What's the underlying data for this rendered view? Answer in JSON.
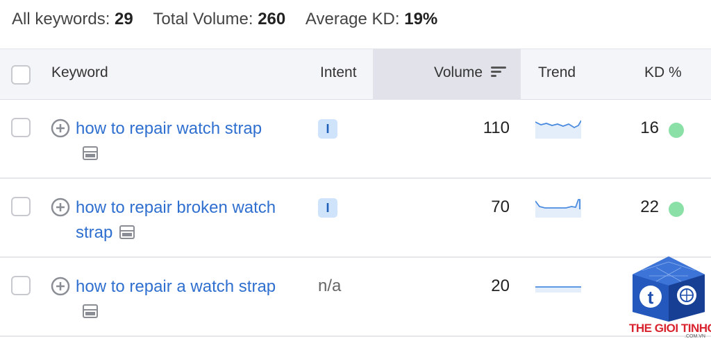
{
  "summary": {
    "all_keywords_label": "All keywords:",
    "all_keywords_value": "29",
    "total_volume_label": "Total Volume:",
    "total_volume_value": "260",
    "avg_kd_label": "Average KD:",
    "avg_kd_value": "19%"
  },
  "table": {
    "headers": {
      "keyword": "Keyword",
      "intent": "Intent",
      "volume": "Volume",
      "trend": "Trend",
      "kd": "KD %"
    },
    "rows": [
      {
        "keyword": "how to repair watch strap",
        "intent": "I",
        "intent_type": "badge",
        "volume": "110",
        "kd": "16",
        "kd_color": "#8be0a7",
        "trend_icon": "trend-sparkline-wavy"
      },
      {
        "keyword": "how to repair broken watch strap",
        "intent": "I",
        "intent_type": "badge",
        "volume": "70",
        "kd": "22",
        "kd_color": "#8be0a7",
        "trend_icon": "trend-sparkline-spike"
      },
      {
        "keyword": "how to repair a watch strap",
        "intent": "n/a",
        "intent_type": "text",
        "volume": "20",
        "kd": "",
        "kd_color": "",
        "trend_icon": "trend-sparkline-flat"
      }
    ]
  },
  "colors": {
    "link": "#2f6fcf",
    "intent_badge_bg": "#cfe3fb",
    "kd_easy": "#8be0a7",
    "header_bg": "#f4f5f9",
    "sorted_header_bg": "#e1e2ea"
  },
  "watermark": {
    "brand": "THE GIOI TINHOC",
    "domain": ".COM.VN"
  }
}
